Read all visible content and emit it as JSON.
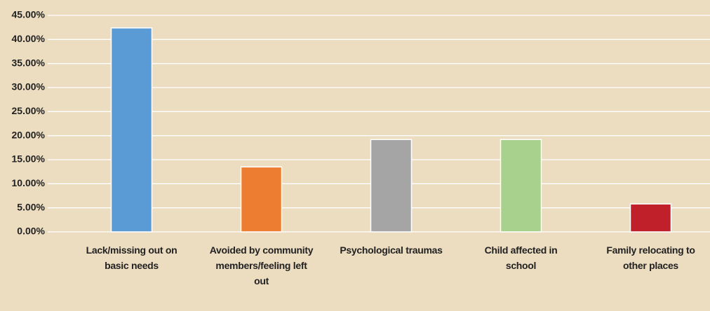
{
  "chart_data": {
    "type": "bar",
    "categories": [
      "Lack/missing out on basic needs",
      "Avoided by community members/feeling left out",
      "Psychological traumas",
      "Child affected in school",
      "Family relocating to other places"
    ],
    "values": [
      42.4,
      13.5,
      19.2,
      19.2,
      5.8
    ],
    "colors": [
      "#5b9bd5",
      "#ed7d31",
      "#a5a5a5",
      "#a9d18e",
      "#c0202a"
    ],
    "ylim": [
      0,
      45
    ],
    "yticks": [
      {
        "value": 0,
        "label": "0.00%"
      },
      {
        "value": 5,
        "label": "5.00%"
      },
      {
        "value": 10,
        "label": "10.00%"
      },
      {
        "value": 15,
        "label": "15.00%"
      },
      {
        "value": 20,
        "label": "20.00%"
      },
      {
        "value": 25,
        "label": "25.00%"
      },
      {
        "value": 30,
        "label": "30.00%"
      },
      {
        "value": 35,
        "label": "35.00%"
      },
      {
        "value": 40,
        "label": "40.00%"
      },
      {
        "value": 45,
        "label": "45.00%"
      }
    ],
    "grid": true
  }
}
